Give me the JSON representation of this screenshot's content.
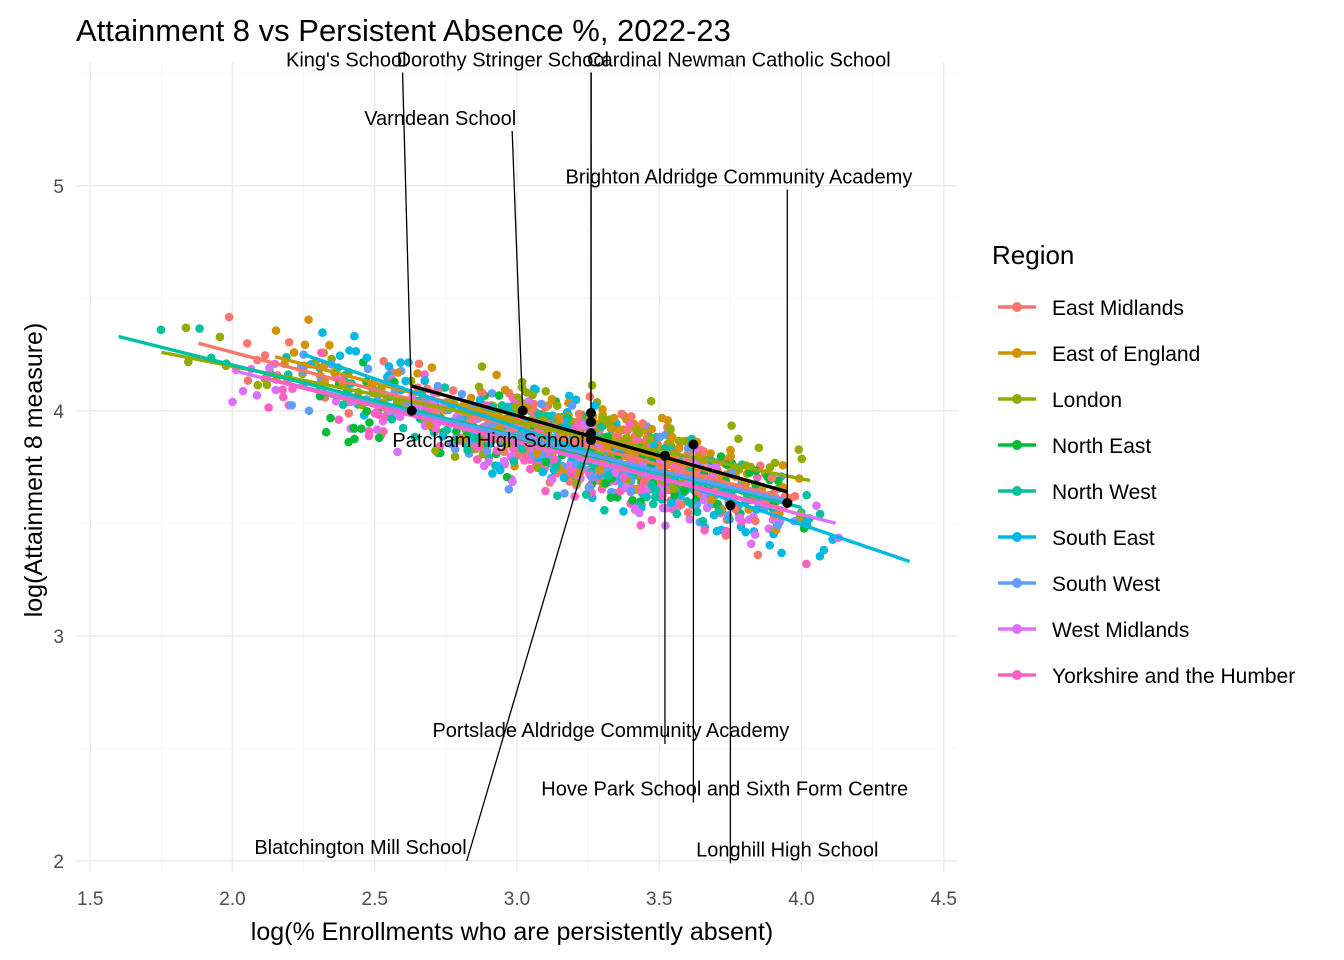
{
  "chart_data": {
    "type": "scatter",
    "title": "Attainment 8 vs Persistent Absence %, 2022-23",
    "xlabel": "log(% Enrollments who are persistently absent)",
    "ylabel": "log(Attainment 8 measure)",
    "xlim": [
      1.45,
      4.55
    ],
    "ylim": [
      1.95,
      5.55
    ],
    "x_ticks": [
      1.5,
      2.0,
      2.5,
      3.0,
      3.5,
      4.0,
      4.5
    ],
    "y_ticks": [
      2,
      3,
      4,
      5
    ],
    "grid": true,
    "legend": {
      "title": "Region",
      "position": "right",
      "entries": [
        {
          "name": "East Midlands",
          "color": "#F8766D"
        },
        {
          "name": "East of England",
          "color": "#D39200"
        },
        {
          "name": "London",
          "color": "#93AA00"
        },
        {
          "name": "North East",
          "color": "#00BA38"
        },
        {
          "name": "North West",
          "color": "#00C19F"
        },
        {
          "name": "South East",
          "color": "#00B9E3"
        },
        {
          "name": "South West",
          "color": "#619CFF"
        },
        {
          "name": "West Midlands",
          "color": "#DB72FB"
        },
        {
          "name": "Yorkshire and the Humber",
          "color": "#FF61C3"
        }
      ]
    },
    "series_trends": [
      {
        "name": "East Midlands",
        "x": [
          1.88,
          3.92
        ],
        "y": [
          4.3,
          3.62
        ]
      },
      {
        "name": "East of England",
        "x": [
          2.15,
          3.95
        ],
        "y": [
          4.24,
          3.64
        ]
      },
      {
        "name": "London",
        "x": [
          1.75,
          4.03
        ],
        "y": [
          4.26,
          3.69
        ]
      },
      {
        "name": "North East",
        "x": [
          2.3,
          3.95
        ],
        "y": [
          4.08,
          3.6
        ]
      },
      {
        "name": "North West",
        "x": [
          1.6,
          4.0
        ],
        "y": [
          4.33,
          3.57
        ]
      },
      {
        "name": "South East",
        "x": [
          2.25,
          4.38
        ],
        "y": [
          4.25,
          3.33
        ]
      },
      {
        "name": "South West",
        "x": [
          2.2,
          3.95
        ],
        "y": [
          4.12,
          3.6
        ]
      },
      {
        "name": "West Midlands",
        "x": [
          2.0,
          4.12
        ],
        "y": [
          4.18,
          3.5
        ]
      },
      {
        "name": "Yorkshire and the Humber",
        "x": [
          2.1,
          3.95
        ],
        "y": [
          4.15,
          3.56
        ]
      }
    ],
    "highlight_trend": {
      "x": [
        2.63,
        3.95
      ],
      "y": [
        4.11,
        3.64
      ],
      "color": "#000000"
    },
    "highlighted_points": [
      {
        "label": "King's School",
        "x": 2.63,
        "y": 4.0,
        "label_x": 2.4,
        "label_y": 5.53
      },
      {
        "label": "Dorothy Stringer School",
        "x": 3.26,
        "y": 3.99,
        "label_x": 2.95,
        "label_y": 5.53
      },
      {
        "label": "Cardinal Newman Catholic School",
        "x": 3.26,
        "y": 3.95,
        "label_x": 3.78,
        "label_y": 5.53
      },
      {
        "label": "Varndean School",
        "x": 3.02,
        "y": 4.0,
        "label_x": 2.73,
        "label_y": 5.27
      },
      {
        "label": "Brighton Aldridge Community Academy",
        "x": 3.95,
        "y": 3.59,
        "label_x": 3.78,
        "label_y": 5.01
      },
      {
        "label": "Patcham High School",
        "x": 3.26,
        "y": 3.9,
        "label_x": 2.9,
        "label_y": 3.84
      },
      {
        "label": "Portslade Aldridge Community Academy",
        "x": 3.52,
        "y": 3.8,
        "label_x": 3.33,
        "label_y": 2.55
      },
      {
        "label": "Hove Park School and Sixth Form Centre",
        "x": 3.62,
        "y": 3.85,
        "label_x": 3.73,
        "label_y": 2.29
      },
      {
        "label": "Blatchington Mill School",
        "x": 3.26,
        "y": 3.87,
        "label_x": 2.45,
        "label_y": 2.03
      },
      {
        "label": "Longhill High School",
        "x": 3.75,
        "y": 3.58,
        "label_x": 3.95,
        "label_y": 2.02
      }
    ]
  }
}
